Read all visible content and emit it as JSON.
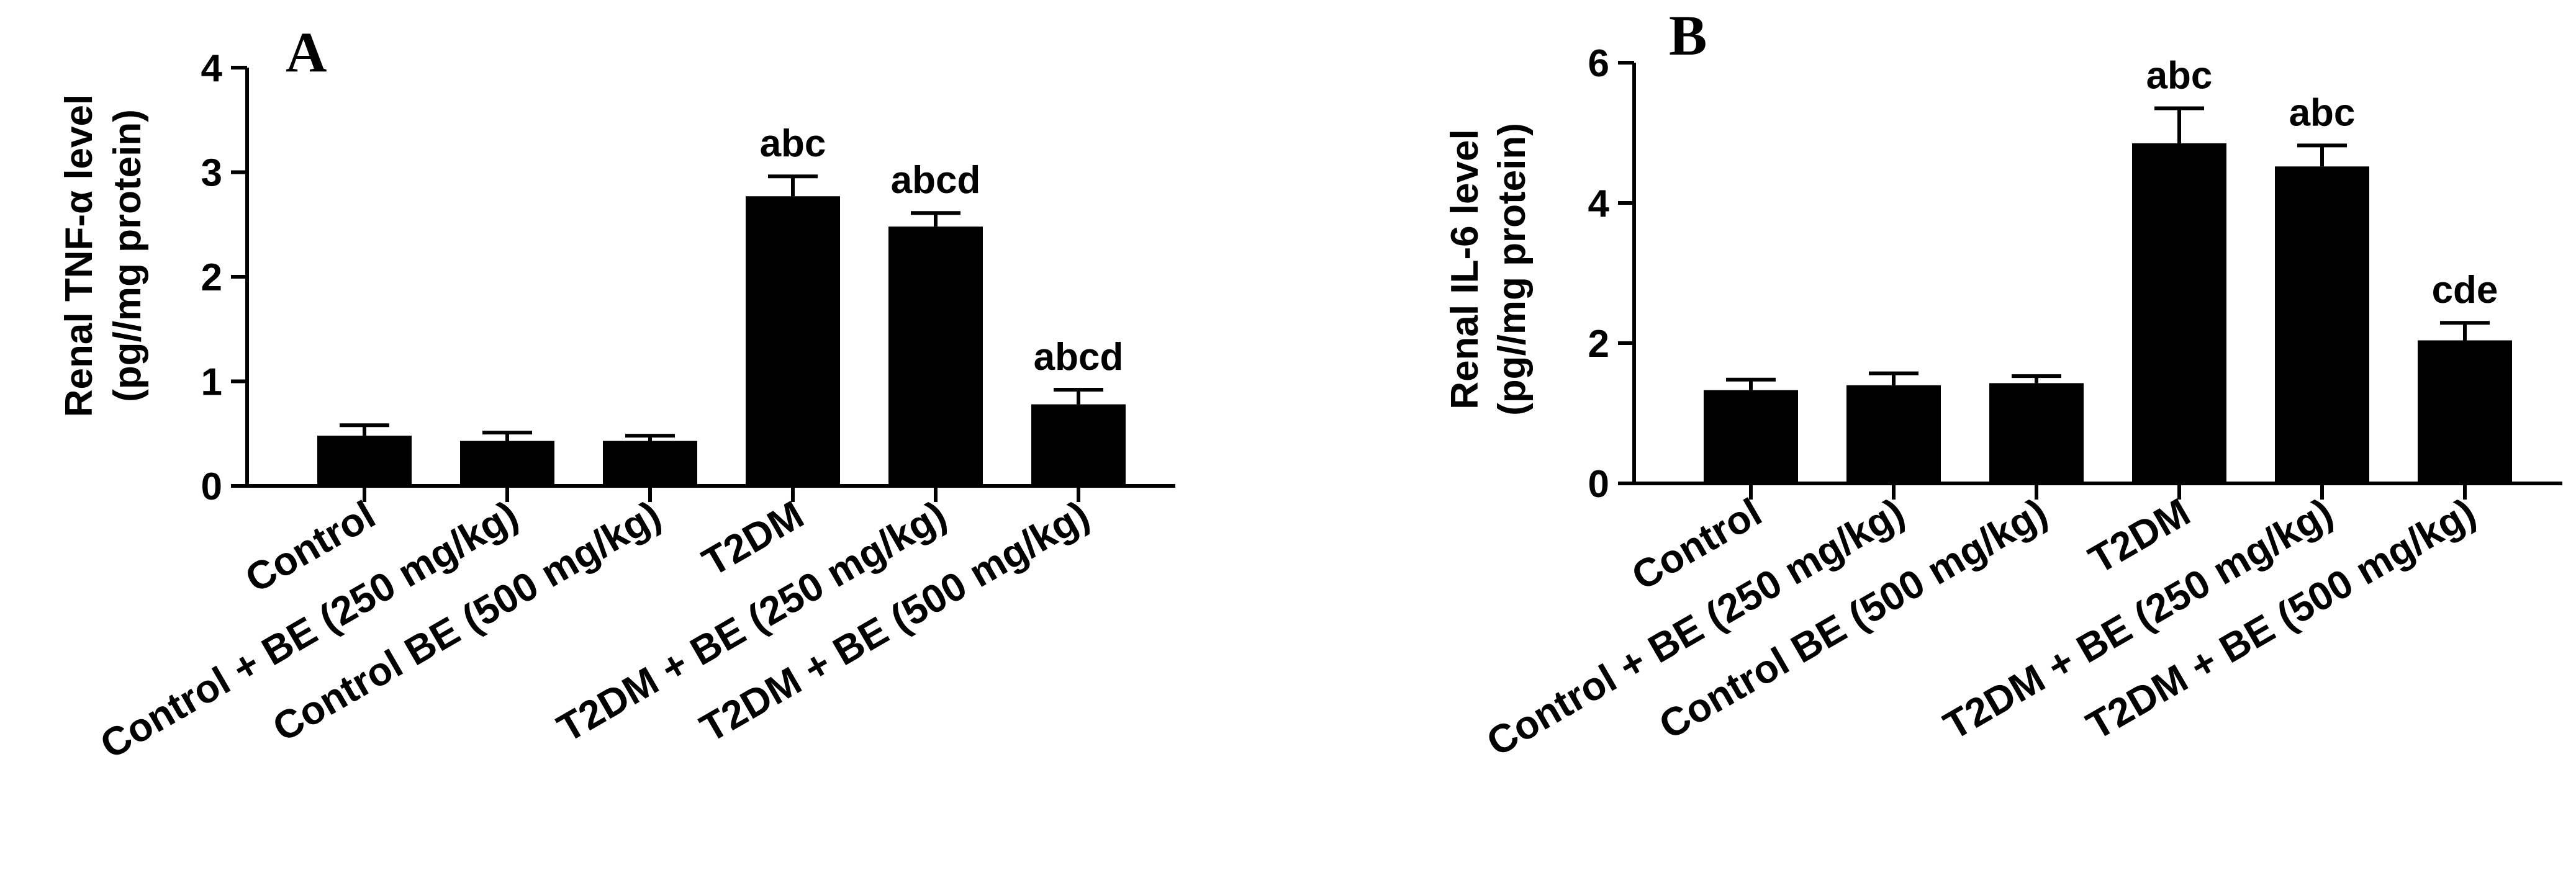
{
  "chart_data": [
    {
      "type": "bar",
      "panel_label": "A",
      "ylabel_line1": "Renal TNF-α level",
      "ylabel_line2": "(pg//mg protein)",
      "ylim": [
        0,
        4
      ],
      "yticks": [
        "0",
        "1",
        "2",
        "3",
        "4"
      ],
      "categories": [
        "Control",
        "Control + BE (250 mg/kg)",
        "Control BE (500 mg/kg)",
        "T2DM",
        "T2DM + BE (250 mg/kg)",
        "T2DM + BE (500 mg/kg)"
      ],
      "values": [
        0.48,
        0.43,
        0.43,
        2.77,
        2.48,
        0.78
      ],
      "errors": [
        0.1,
        0.08,
        0.05,
        0.19,
        0.13,
        0.14
      ],
      "annotations": [
        "",
        "",
        "",
        "abc",
        "abcd",
        "abcd"
      ],
      "bar_color": "#000000",
      "grid": false
    },
    {
      "type": "bar",
      "panel_label": "B",
      "ylabel_line1": "Renal IL-6 level",
      "ylabel_line2": "(pg//mg protein)",
      "ylim": [
        0,
        6
      ],
      "yticks": [
        "0",
        "2",
        "4",
        "6"
      ],
      "categories": [
        "Control",
        "Control + BE (250 mg/kg)",
        "Control BE (500 mg/kg)",
        "T2DM",
        "T2DM + BE (250 mg/kg)",
        "T2DM + BE (500 mg/kg)"
      ],
      "values": [
        1.33,
        1.4,
        1.43,
        4.85,
        4.52,
        2.04
      ],
      "errors": [
        0.15,
        0.17,
        0.1,
        0.5,
        0.3,
        0.25
      ],
      "annotations": [
        "",
        "",
        "",
        "abc",
        "abc",
        "cde"
      ],
      "bar_color": "#000000",
      "grid": false
    }
  ]
}
